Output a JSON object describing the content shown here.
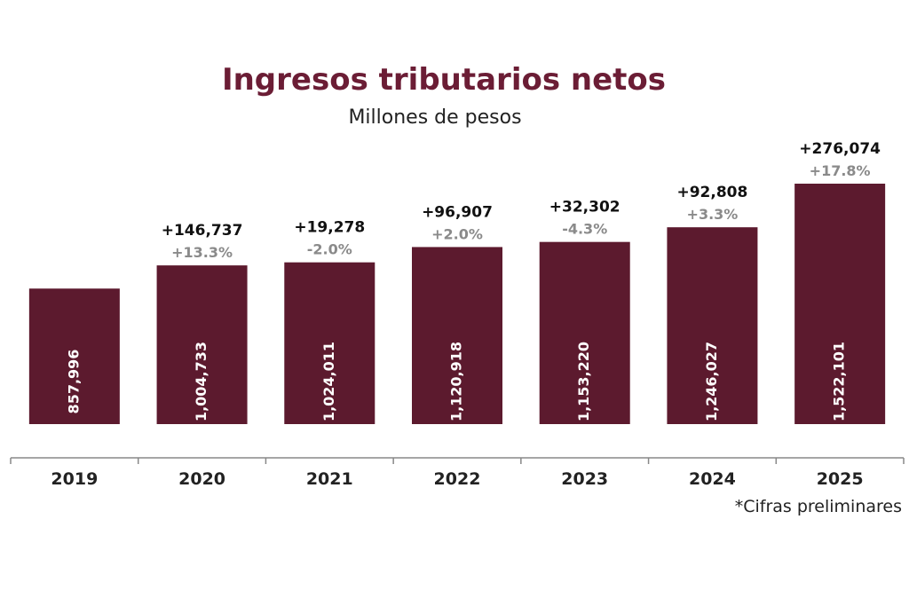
{
  "title": "Ingresos tributarios netos",
  "subtitle": "Millones de pesos",
  "footnote": "*Cifras preliminares",
  "colors": {
    "bar": "#5c1a2e",
    "title": "#6b1d35",
    "delta": "#111111",
    "pct": "#8a8a8a"
  },
  "chart_data": {
    "type": "bar",
    "title": "Ingresos tributarios netos",
    "ylabel": "Millones de pesos",
    "xlabel": "",
    "categories": [
      "2019",
      "2020",
      "2021",
      "2022",
      "2023",
      "2024",
      "2025"
    ],
    "values": [
      857996,
      1004733,
      1024011,
      1120918,
      1153220,
      1246027,
      1522101
    ],
    "value_labels": [
      "857,996",
      "1,004,733",
      "1,024,011",
      "1,120,918",
      "1,153,220",
      "1,246,027",
      "1,522,101"
    ],
    "change_labels": [
      "",
      "+146,737",
      "+19,278",
      "+96,907",
      "+32,302",
      "+92,808",
      "+276,074"
    ],
    "pct_labels": [
      "",
      "+13.3%",
      "-2.0%",
      "+2.0%",
      "-4.3%",
      "+3.3%",
      "+17.8%"
    ],
    "ylim": [
      0,
      1600000
    ],
    "grid": false
  }
}
